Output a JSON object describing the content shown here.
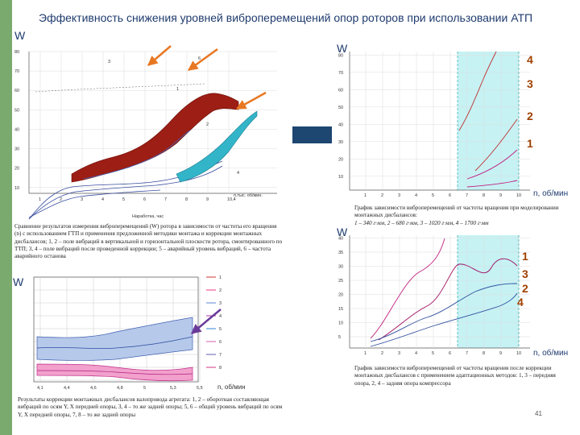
{
  "slide": {
    "title": "Эффективность снижения уровней виброперемещений опор роторов при  использовании  АТП",
    "page_number": "41"
  },
  "panel_tl": {
    "w_label": "W",
    "y_ticks": [
      "80",
      "70",
      "60",
      "50",
      "40",
      "30",
      "20",
      "10"
    ],
    "x_ticks": [
      "1",
      "2",
      "3",
      "4",
      "5",
      "6",
      "7",
      "8",
      "9",
      "10,4"
    ],
    "x_extra": "п.тыс. об/мин.",
    "xlabel": "Наработка, час",
    "curve_labels": [
      "3",
      "6",
      "1",
      "2",
      "4"
    ],
    "caption": "Сравнение результатов измерения виброперемещений (W) ротора в зависимости от частоты его вращения (n) с использованием ГТП и применения предложенной методики монтажа и коррекции монтажных дисбалансов; 1, 2 – поле вибраций в вертикальной и горизонтальной плоскости ротора, смонтированного по ТТП; 3, 4 – поле вибраций после проведенной коррекции; 5 – аварийный уровень вибраций, 6 – частота аварийного останова"
  },
  "panel_bl": {
    "w_label": "W",
    "x_ticks": [
      "4,1",
      "4,4",
      "4,6",
      "4,8",
      "5",
      "5,3",
      "5,5"
    ],
    "nlabel": "n, об/мин",
    "legend": [
      "1",
      "2",
      "3",
      "4",
      "5",
      "6",
      "7",
      "8"
    ],
    "caption": "Результаты коррекции монтажных дисбалансов валопровода агрегата: 1, 2 – оборотная составляющая вибраций по осям Y, X передней опоры, 3, 4 – то же задней опоры; 5, 6 – общий уровень вибраций по осям Y, X передней опоры, 7, 8 – то же задней опоры"
  },
  "panel_tr": {
    "w_label": "W",
    "y_ticks": [
      "80",
      "70",
      "60",
      "50",
      "40",
      "30",
      "20",
      "10"
    ],
    "x_ticks": [
      "1",
      "2",
      "3",
      "4",
      "5",
      "6",
      "7",
      "8",
      "9",
      "10"
    ],
    "nlabel": "n, об/мин",
    "curve_numbers": [
      "4",
      "3",
      "2",
      "1"
    ],
    "caption_line1": "График зависимости виброперемещений от частоты вращения при  моделировании монтажных дисбалансов:",
    "caption_line2": "1 – 340 г·мм, 2 – 680 г·мм, 3 – 1020 г·мм, 4 – 1700 г·мм"
  },
  "panel_br": {
    "w_label": "W",
    "y_ticks": [
      "40",
      "35",
      "30",
      "25",
      "20",
      "15",
      "10",
      "5"
    ],
    "x_ticks": [
      "1",
      "2",
      "3",
      "4",
      "5",
      "6",
      "7",
      "8",
      "9",
      "10"
    ],
    "nlabel": "n, об/мин",
    "curve_numbers": [
      "1",
      "3",
      "2",
      "4"
    ],
    "caption": "График зависимости  виброперемещений  от  частоты вращения после коррекции монтажных дисбалансов с применением адаптационных методов: 1, 3 – передняя опора,    2, 4 – задняя опора компрессора"
  }
}
